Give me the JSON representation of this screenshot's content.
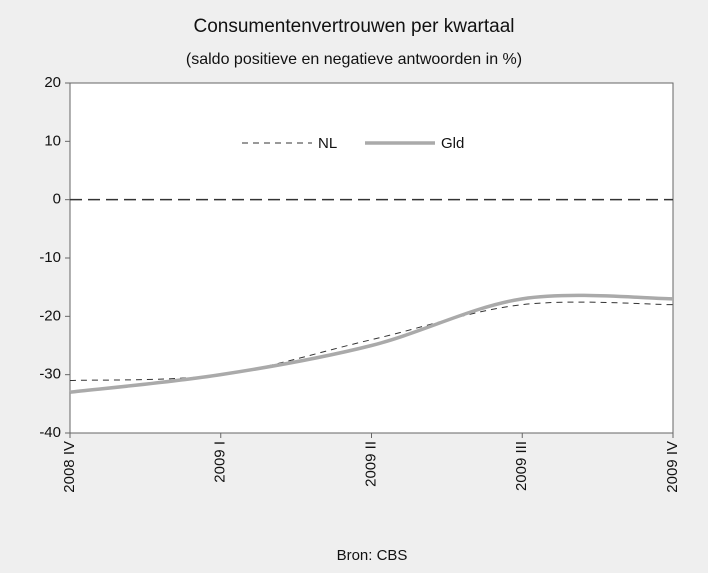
{
  "chart_data": {
    "type": "line",
    "title": "Consumentenvertrouwen per kwartaal",
    "subtitle": "(saldo positieve en negatieve antwoorden in %)",
    "source": "Bron: CBS",
    "categories": [
      "2008 IV",
      "2009 I",
      "2009 II",
      "2009 III",
      "2009 IV"
    ],
    "series": [
      {
        "name": "NL",
        "color": "#333333",
        "dashed": true,
        "values": [
          -31,
          -30,
          -24,
          -18,
          -18
        ]
      },
      {
        "name": "Gld",
        "color": "#aaaaaa",
        "dashed": false,
        "values": [
          -33,
          -30,
          -25,
          -17,
          -17
        ]
      }
    ],
    "ylim": [
      -40,
      20
    ],
    "yticks": [
      -40,
      -30,
      -20,
      -10,
      0,
      10,
      20
    ],
    "zero_line": true,
    "legend": "top"
  }
}
